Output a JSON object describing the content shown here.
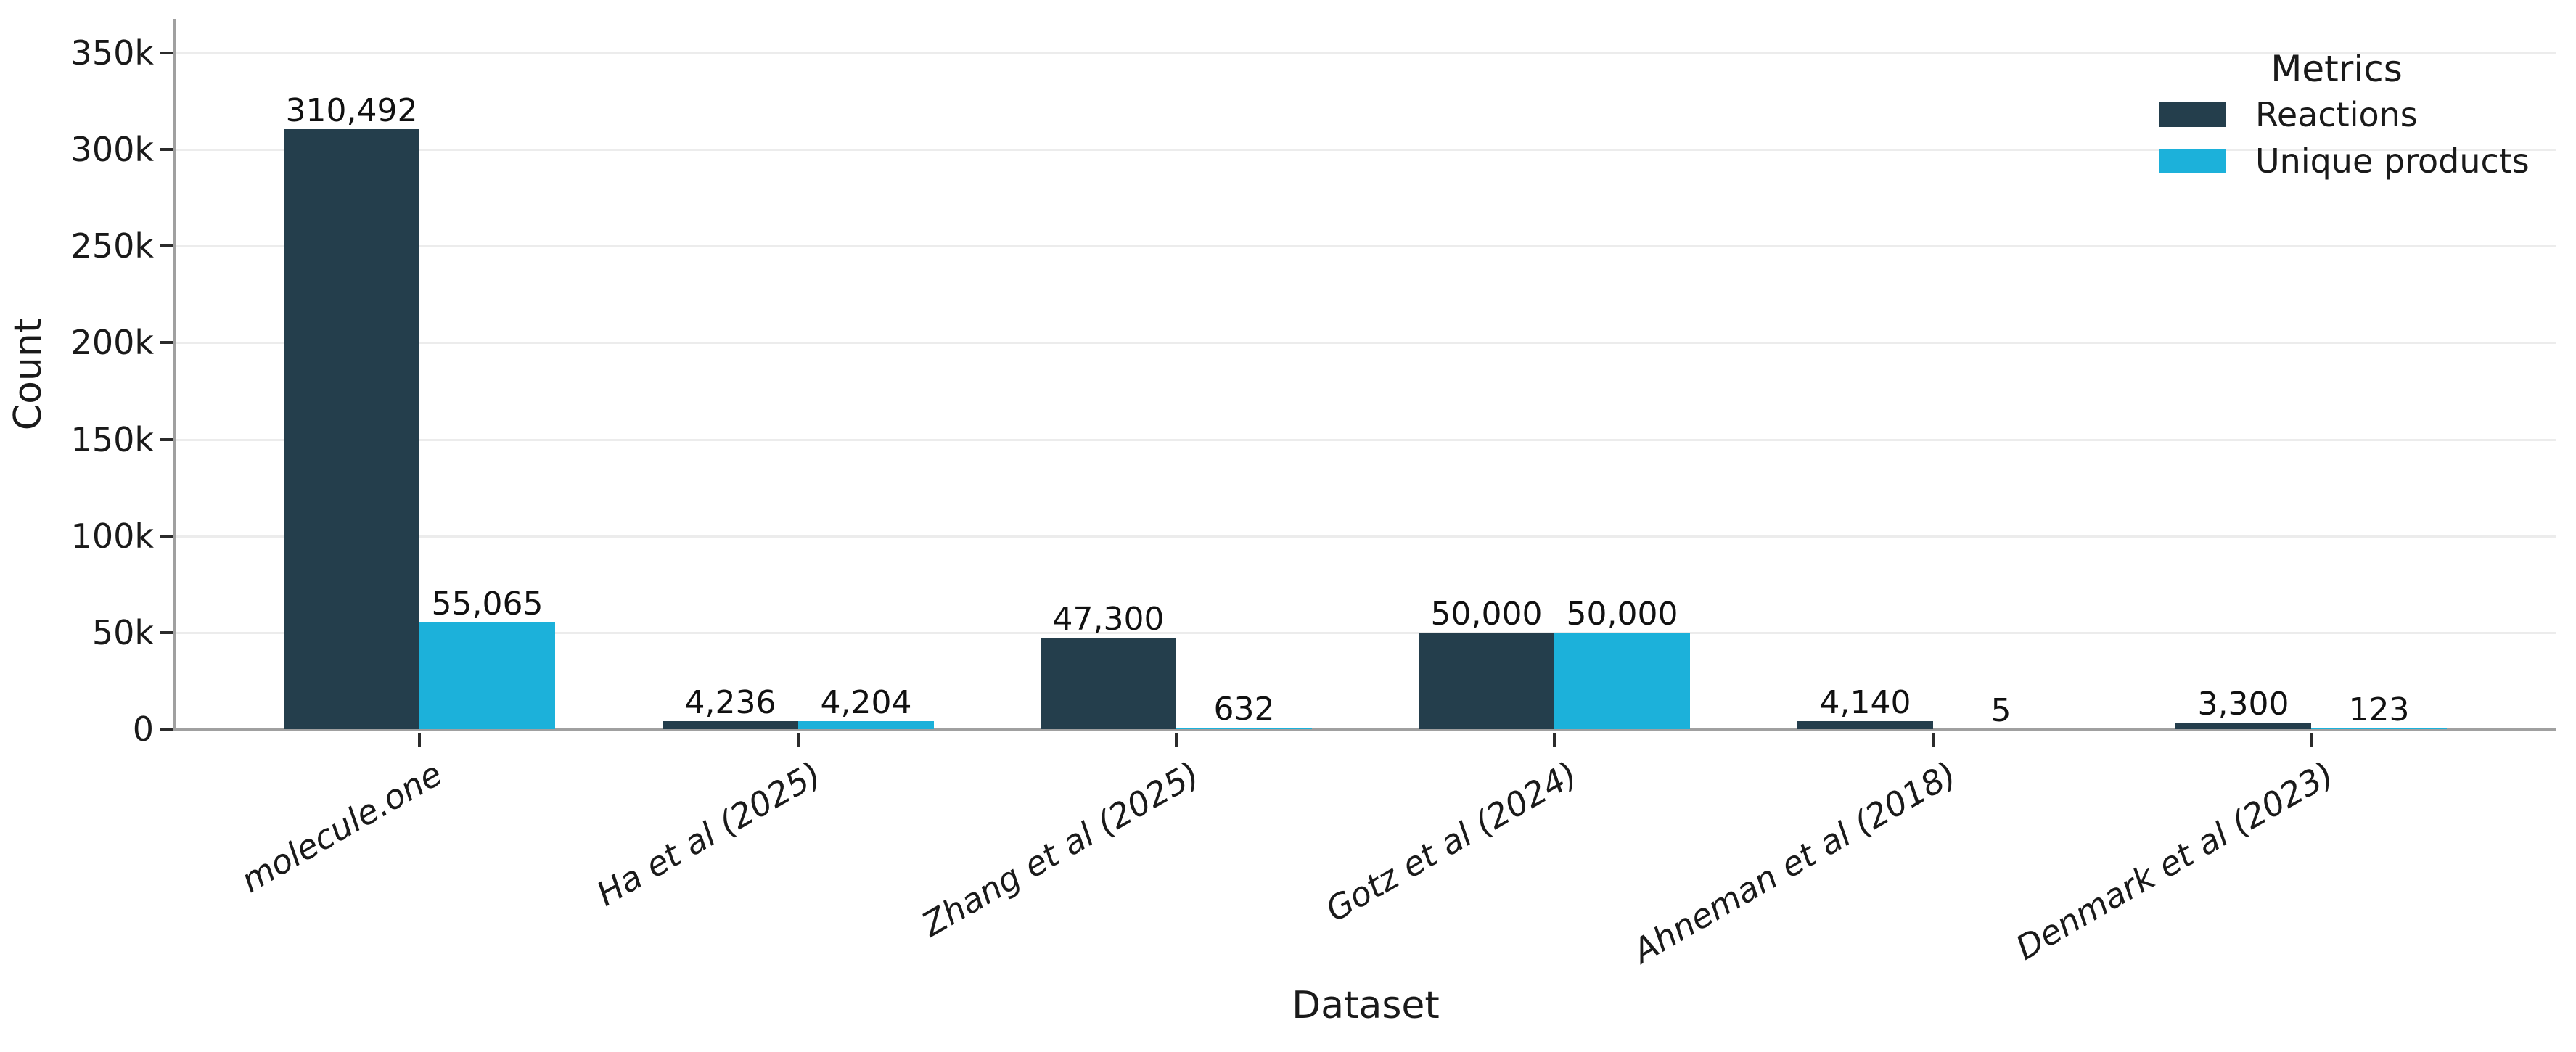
{
  "chart_data": {
    "type": "bar",
    "title": "",
    "xlabel": "Dataset",
    "ylabel": "Count",
    "categories": [
      "molecule.one",
      "Ha et al (2025)",
      "Zhang et al (2025)",
      "Gotz et al (2024)",
      "Ahneman et al (2018)",
      "Denmark et al (2023)"
    ],
    "series": [
      {
        "name": "Reactions",
        "color": "#243E4C",
        "values": [
          310492,
          4236,
          47300,
          50000,
          4140,
          3300
        ],
        "value_labels": [
          "310,492",
          "4,236",
          "47,300",
          "50,000",
          "4,140",
          "3,300"
        ]
      },
      {
        "name": "Unique products",
        "color": "#1CB1DA",
        "values": [
          55065,
          4204,
          632,
          50000,
          5,
          123
        ],
        "value_labels": [
          "55,065",
          "4,204",
          "632",
          "50,000",
          "5",
          "123"
        ]
      }
    ],
    "y_axis": {
      "range": [
        0,
        350000
      ],
      "ticks": [
        {
          "value": 0,
          "label": "0"
        },
        {
          "value": 50000,
          "label": "50k"
        },
        {
          "value": 100000,
          "label": "100k"
        },
        {
          "value": 150000,
          "label": "150k"
        },
        {
          "value": 200000,
          "label": "200k"
        },
        {
          "value": 250000,
          "label": "250k"
        },
        {
          "value": 300000,
          "label": "300k"
        },
        {
          "value": 350000,
          "label": "350k"
        }
      ]
    },
    "legend": {
      "title": "Metrics",
      "position": "upper right",
      "entries": [
        "Reactions",
        "Unique products"
      ]
    },
    "grid": "horizontal",
    "bar_value_labels": true
  }
}
